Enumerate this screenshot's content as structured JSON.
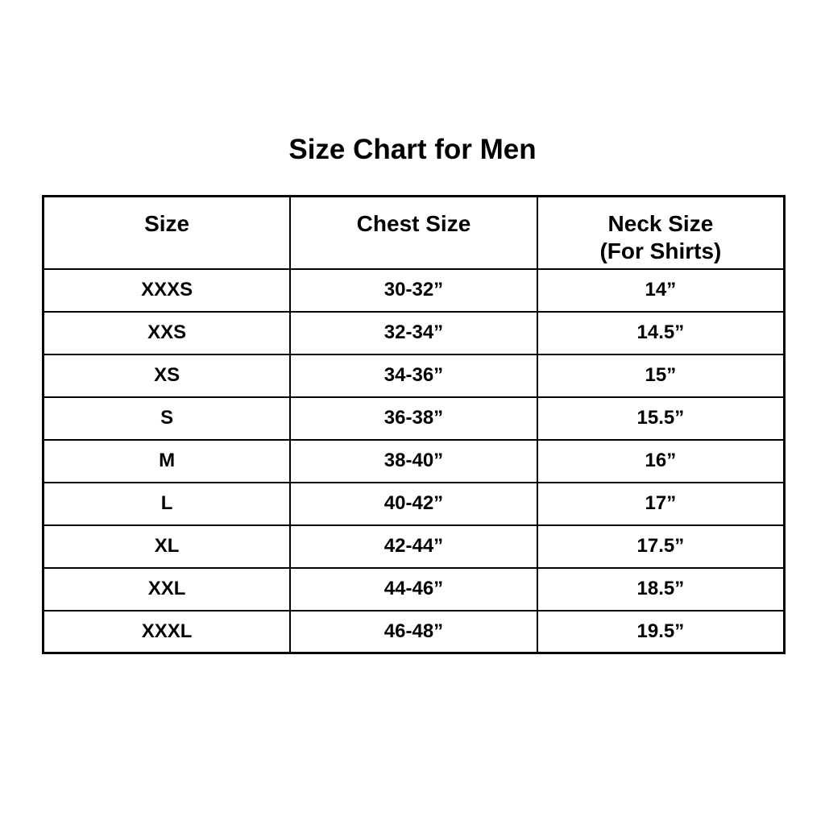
{
  "page": {
    "title": "Size Chart for Men",
    "background_color": "#ffffff",
    "text_color": "#000000",
    "border_color": "#000000"
  },
  "table": {
    "headers": [
      {
        "label": "Size",
        "sublabel": ""
      },
      {
        "label": "Chest Size",
        "sublabel": ""
      },
      {
        "label": "Neck Size",
        "sublabel": "(For Shirts)"
      }
    ],
    "rows": [
      {
        "size": "XXXS",
        "chest": "30-32”",
        "neck": "14”"
      },
      {
        "size": "XXS",
        "chest": "32-34”",
        "neck": "14.5”"
      },
      {
        "size": "XS",
        "chest": "34-36”",
        "neck": "15”"
      },
      {
        "size": "S",
        "chest": "36-38”",
        "neck": "15.5”"
      },
      {
        "size": "M",
        "chest": "38-40”",
        "neck": "16”"
      },
      {
        "size": "L",
        "chest": "40-42”",
        "neck": "17”"
      },
      {
        "size": "XL",
        "chest": "42-44”",
        "neck": "17.5”"
      },
      {
        "size": "XXL",
        "chest": "44-46”",
        "neck": "18.5”"
      },
      {
        "size": "XXXL",
        "chest": "46-48”",
        "neck": "19.5”"
      }
    ]
  }
}
